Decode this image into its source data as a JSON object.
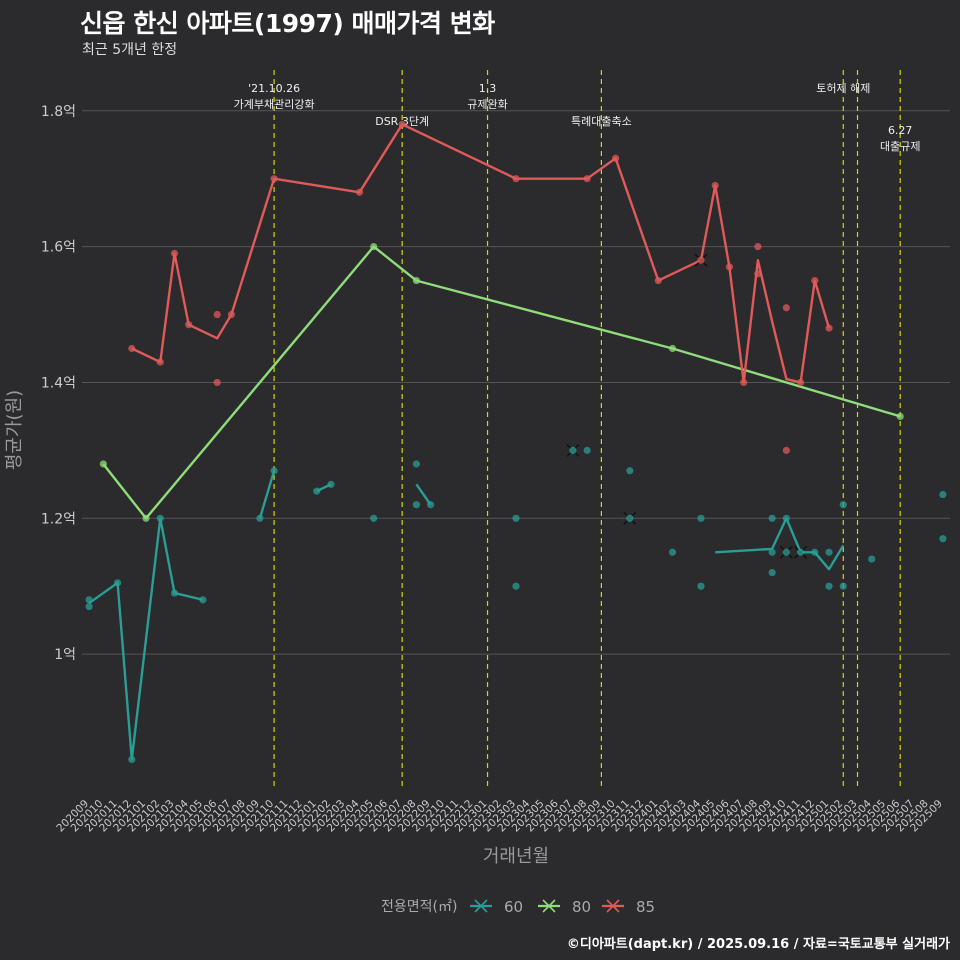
{
  "title": "신읍 한신 아파트(1997) 매매가격 변화",
  "subtitle": "최근 5개년 한정",
  "caption": "©디아파트(dapt.kr) / 2025.09.16 / 자료=국토교통부 실거래가",
  "colors": {
    "bg": "#2b2a2c",
    "grid": "#555555",
    "event": "#d6d600",
    "s60": "#2a9d96",
    "s80": "#8fdc7a",
    "s85": "#e05a5a"
  },
  "chart_data": {
    "type": "line",
    "xlabel": "거래년월",
    "ylabel": "평균가(원)",
    "ylim": [
      0.8,
      1.86
    ],
    "yticks": [
      {
        "v": 1.0,
        "label": "1억"
      },
      {
        "v": 1.2,
        "label": "1.2억"
      },
      {
        "v": 1.4,
        "label": "1.4억"
      },
      {
        "v": 1.6,
        "label": "1.6억"
      },
      {
        "v": 1.8,
        "label": "1.8억"
      }
    ],
    "categories": [
      "202009",
      "202010",
      "202011",
      "202012",
      "202101",
      "202102",
      "202103",
      "202104",
      "202105",
      "202106",
      "202107",
      "202108",
      "202109",
      "202110",
      "202111",
      "202112",
      "202201",
      "202202",
      "202203",
      "202204",
      "202205",
      "202206",
      "202207",
      "202208",
      "202209",
      "202210",
      "202211",
      "202212",
      "202301",
      "202302",
      "202303",
      "202304",
      "202305",
      "202306",
      "202307",
      "202308",
      "202309",
      "202310",
      "202311",
      "202312",
      "202401",
      "202402",
      "202403",
      "202404",
      "202405",
      "202406",
      "202407",
      "202408",
      "202409",
      "202410",
      "202411",
      "202412",
      "202501",
      "202502",
      "202503",
      "202504",
      "202505",
      "202506",
      "202507",
      "202508",
      "202509"
    ],
    "events": [
      {
        "x": 13,
        "lines": [
          "'21.10.26",
          "가계부채관리강화"
        ],
        "level": 0
      },
      {
        "x": 22,
        "lines": [
          "DSR 3단계"
        ],
        "level": 1
      },
      {
        "x": 28,
        "lines": [
          "1.3",
          "규제완화"
        ],
        "level": 0
      },
      {
        "x": 36,
        "lines": [
          "특례대출축소"
        ],
        "level": 1
      },
      {
        "x": 53,
        "lines": [
          "토허제 해제"
        ],
        "level": 0
      },
      {
        "x": 54,
        "lines": [],
        "level": 0
      },
      {
        "x": 57,
        "lines": [
          "6.27",
          "대출규제"
        ],
        "level": 2
      }
    ],
    "legend": {
      "title": "전용면적(㎡)",
      "position": "bottom"
    },
    "series": [
      {
        "name": "60",
        "color": "#2a9d96",
        "lines": [
          [
            [
              0,
              1.075
            ],
            [
              2,
              1.105
            ],
            [
              3,
              0.845
            ],
            [
              5,
              1.2
            ],
            [
              6,
              1.09
            ],
            [
              8,
              1.08
            ]
          ],
          [
            [
              12,
              1.2
            ],
            [
              13,
              1.27
            ]
          ],
          [
            [
              16,
              1.24
            ],
            [
              17,
              1.25
            ]
          ],
          [
            [
              23,
              1.25
            ],
            [
              24,
              1.22
            ]
          ],
          [
            [
              44,
              1.15
            ],
            [
              48,
              1.155
            ],
            [
              49,
              1.2
            ],
            [
              50,
              1.15
            ],
            [
              51,
              1.15
            ],
            [
              52,
              1.125
            ],
            [
              53,
              1.16
            ]
          ]
        ],
        "points": [
          [
            0,
            1.08
          ],
          [
            0,
            1.07
          ],
          [
            2,
            1.105
          ],
          [
            3,
            0.845
          ],
          [
            5,
            1.2
          ],
          [
            6,
            1.09
          ],
          [
            8,
            1.08
          ],
          [
            12,
            1.2
          ],
          [
            13,
            1.27
          ],
          [
            16,
            1.24
          ],
          [
            17,
            1.25
          ],
          [
            20,
            1.2
          ],
          [
            23,
            1.28
          ],
          [
            23,
            1.22
          ],
          [
            24,
            1.22
          ],
          [
            30,
            1.2
          ],
          [
            30,
            1.1
          ],
          [
            35,
            1.3
          ],
          [
            38,
            1.27
          ],
          [
            41,
            1.15
          ],
          [
            43,
            1.2
          ],
          [
            43,
            1.1
          ],
          [
            48,
            1.2
          ],
          [
            48,
            1.15
          ],
          [
            48,
            1.12
          ],
          [
            49,
            1.2
          ],
          [
            51,
            1.15
          ],
          [
            52,
            1.15
          ],
          [
            52,
            1.1
          ],
          [
            53,
            1.1
          ],
          [
            53,
            1.22
          ],
          [
            55,
            1.14
          ],
          [
            60,
            1.235
          ],
          [
            60,
            1.17
          ]
        ],
        "crosses": [
          [
            34,
            1.3
          ],
          [
            38,
            1.2
          ],
          [
            49,
            1.15
          ],
          [
            50,
            1.15
          ]
        ]
      },
      {
        "name": "80",
        "color": "#8fdc7a",
        "lines": [
          [
            [
              1,
              1.28
            ],
            [
              4,
              1.2
            ],
            [
              20,
              1.6
            ],
            [
              23,
              1.55
            ],
            [
              41,
              1.45
            ],
            [
              57,
              1.35
            ]
          ]
        ],
        "points": [
          [
            1,
            1.28
          ],
          [
            4,
            1.2
          ],
          [
            20,
            1.6
          ],
          [
            23,
            1.55
          ],
          [
            41,
            1.45
          ],
          [
            57,
            1.35
          ]
        ],
        "crosses": []
      },
      {
        "name": "85",
        "color": "#e05a5a",
        "lines": [
          [
            [
              3,
              1.45
            ],
            [
              5,
              1.43
            ],
            [
              6,
              1.59
            ],
            [
              7,
              1.485
            ],
            [
              9,
              1.465
            ],
            [
              10,
              1.5
            ],
            [
              13,
              1.7
            ],
            [
              19,
              1.68
            ],
            [
              22,
              1.78
            ],
            [
              30,
              1.7
            ],
            [
              35,
              1.7
            ],
            [
              37,
              1.73
            ],
            [
              40,
              1.55
            ],
            [
              43,
              1.58
            ],
            [
              44,
              1.69
            ],
            [
              45,
              1.57
            ],
            [
              46,
              1.4
            ],
            [
              47,
              1.58
            ],
            [
              48,
              1.49
            ],
            [
              49,
              1.405
            ],
            [
              50,
              1.4
            ],
            [
              51,
              1.55
            ],
            [
              52,
              1.48
            ]
          ]
        ],
        "points": [
          [
            3,
            1.45
          ],
          [
            5,
            1.43
          ],
          [
            6,
            1.59
          ],
          [
            7,
            1.485
          ],
          [
            9,
            1.5
          ],
          [
            9,
            1.4
          ],
          [
            10,
            1.5
          ],
          [
            13,
            1.7
          ],
          [
            19,
            1.68
          ],
          [
            22,
            1.78
          ],
          [
            30,
            1.7
          ],
          [
            35,
            1.7
          ],
          [
            37,
            1.73
          ],
          [
            40,
            1.55
          ],
          [
            44,
            1.69
          ],
          [
            45,
            1.57
          ],
          [
            46,
            1.4
          ],
          [
            47,
            1.6
          ],
          [
            47,
            1.56
          ],
          [
            49,
            1.51
          ],
          [
            49,
            1.3
          ],
          [
            50,
            1.4
          ],
          [
            51,
            1.55
          ],
          [
            52,
            1.48
          ]
        ],
        "crosses": [
          [
            43,
            1.58
          ]
        ]
      }
    ]
  }
}
